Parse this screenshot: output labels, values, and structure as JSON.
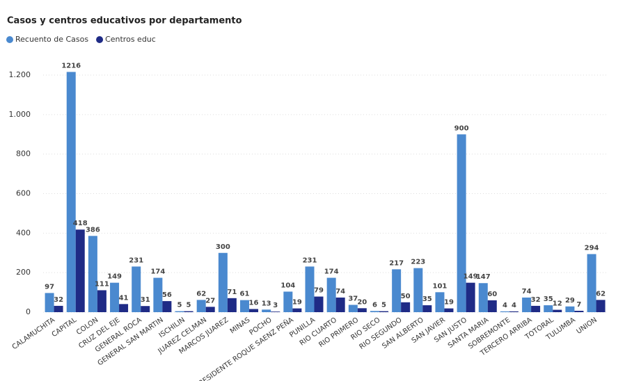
{
  "chart_data": {
    "type": "bar",
    "title": "Casos y centros educativos por departamento",
    "categories": [
      "CALAMUCHITA",
      "CAPITAL",
      "COLON",
      "CRUZ DEL EJE",
      "GENERAL ROCA",
      "GENERAL SAN MARTIN",
      "ISCHILIN",
      "JUAREZ CELMAN",
      "MARCOS JUAREZ",
      "MINAS",
      "POCHO",
      "PRESIDENTE ROQUE SAENZ PEÑA",
      "PUNILLA",
      "RIO CUARTO",
      "RIO PRIMERO",
      "RIO SECO",
      "RIO SEGUNDO",
      "SAN ALBERTO",
      "SAN JAVIER",
      "SAN JUSTO",
      "SANTA MARIA",
      "SOBREMONTE",
      "TERCERO ARRIBA",
      "TOTORAL",
      "TULUMBA",
      "UNION"
    ],
    "series": [
      {
        "name": "Recuento de Casos",
        "color": "#4a89cf",
        "values": [
          97,
          1216,
          386,
          149,
          231,
          174,
          5,
          62,
          300,
          61,
          13,
          104,
          231,
          174,
          37,
          6,
          217,
          223,
          101,
          900,
          147,
          4,
          74,
          35,
          29,
          294
        ]
      },
      {
        "name": "Centros educ",
        "color": "#1f2b86",
        "values": [
          32,
          418,
          111,
          41,
          31,
          56,
          5,
          27,
          71,
          16,
          3,
          19,
          79,
          74,
          20,
          5,
          50,
          35,
          19,
          149,
          60,
          4,
          32,
          12,
          7,
          62
        ]
      }
    ],
    "ylim": [
      0,
      1250
    ],
    "yticks": [
      0,
      200,
      400,
      600,
      800,
      {
        "value": 1000,
        "label": "1.000"
      },
      {
        "value": 1200,
        "label": "1.200"
      }
    ],
    "grid": true,
    "legend": "top-left"
  }
}
